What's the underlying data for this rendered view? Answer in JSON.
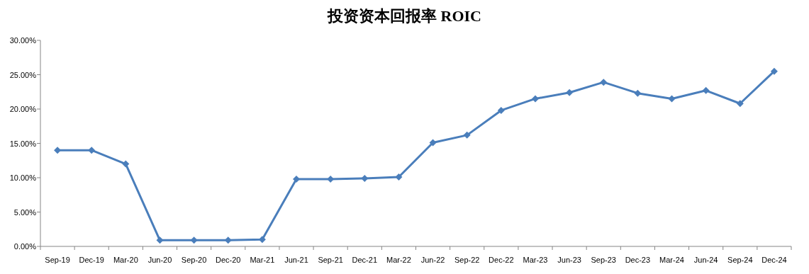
{
  "chart_data": {
    "type": "line",
    "title": "投资资本回报率 ROIC",
    "categories": [
      "Sep-19",
      "Dec-19",
      "Mar-20",
      "Jun-20",
      "Sep-20",
      "Dec-20",
      "Mar-21",
      "Jun-21",
      "Sep-21",
      "Dec-21",
      "Mar-22",
      "Jun-22",
      "Sep-22",
      "Dec-22",
      "Mar-23",
      "Jun-23",
      "Sep-23",
      "Dec-23",
      "Mar-24",
      "Jun-24",
      "Sep-24",
      "Dec-24"
    ],
    "series": [
      {
        "color": "#4a7ebb",
        "values": [
          14.0,
          14.0,
          12.0,
          0.9,
          0.9,
          0.9,
          1.0,
          9.8,
          9.8,
          9.9,
          10.1,
          15.1,
          16.2,
          19.8,
          21.5,
          22.4,
          23.9,
          22.3,
          21.5,
          22.7,
          20.8,
          25.5
        ]
      }
    ],
    "ylim": [
      0,
      30
    ],
    "yticks": [
      {
        "value": 0,
        "label": "0.00%"
      },
      {
        "value": 5,
        "label": "5.00%"
      },
      {
        "value": 10,
        "label": "10.00%"
      },
      {
        "value": 15,
        "label": "15.00%"
      },
      {
        "value": 20,
        "label": "20.00%"
      },
      {
        "value": 25,
        "label": "25.00%"
      },
      {
        "value": 30,
        "label": "30.00%"
      }
    ],
    "marker": "diamond",
    "line_style": "solid"
  }
}
